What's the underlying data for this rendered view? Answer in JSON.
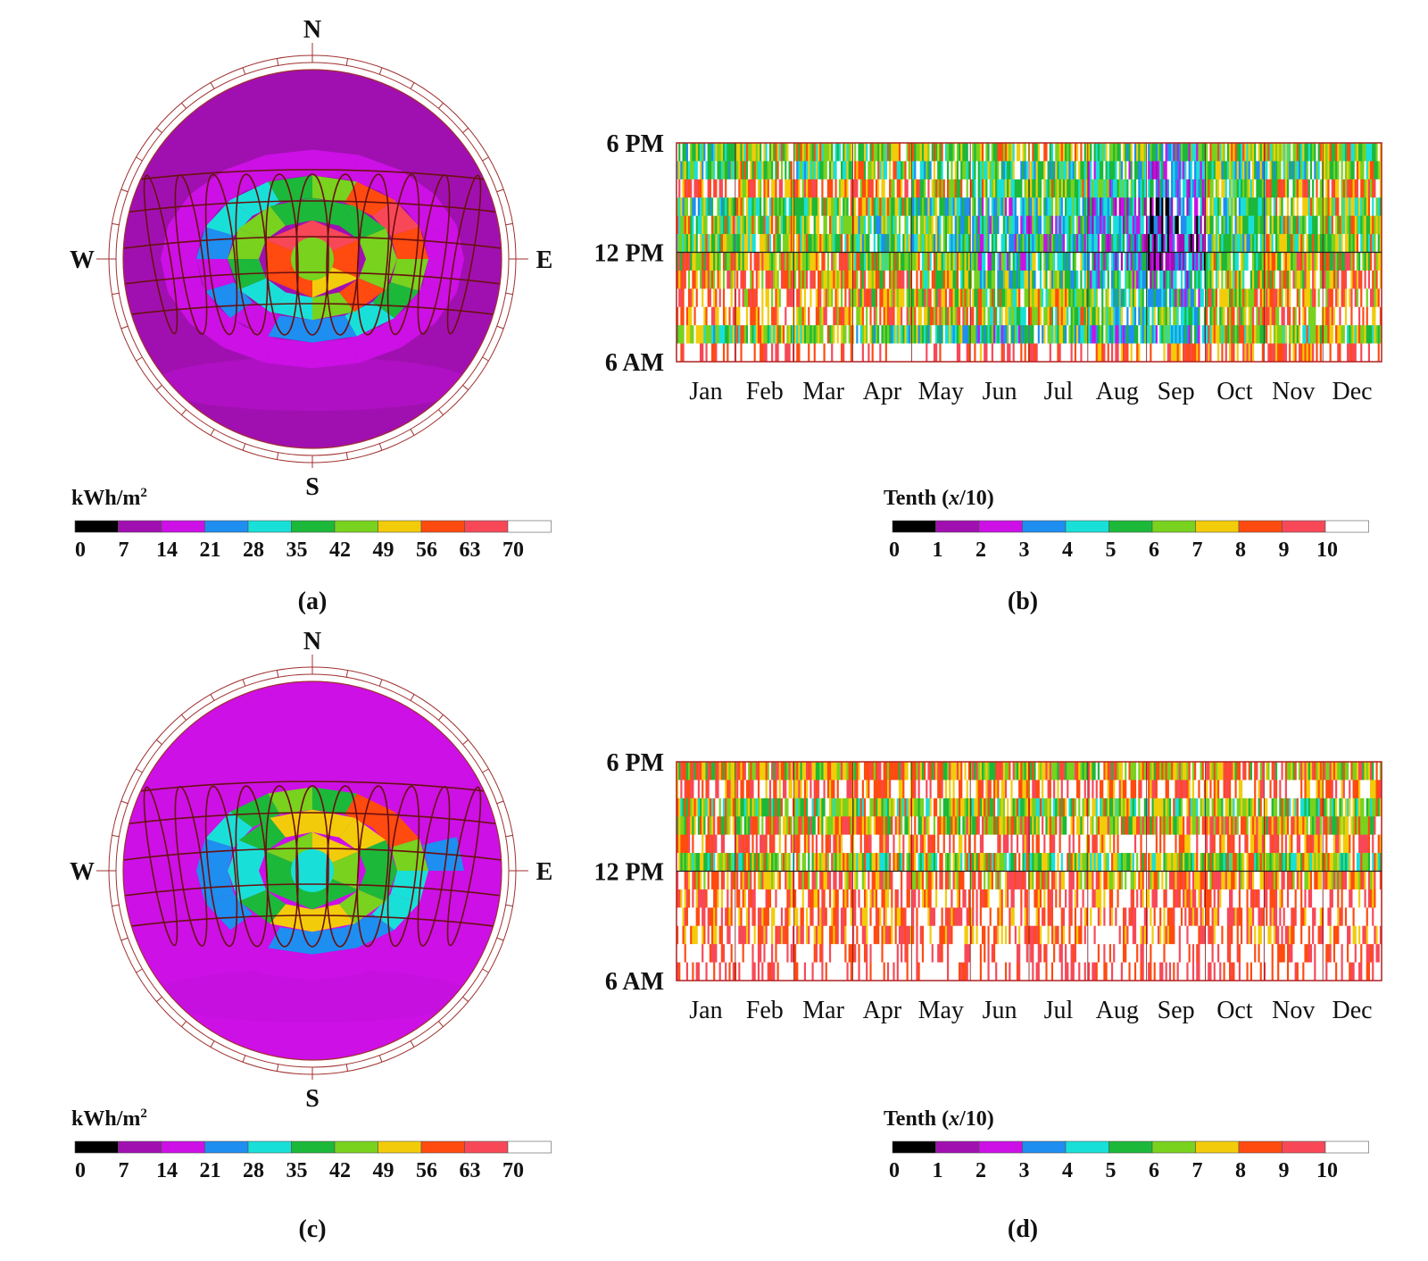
{
  "panels": [
    {
      "id": "a",
      "label": "(a)"
    },
    {
      "id": "b",
      "label": "(b)"
    },
    {
      "id": "c",
      "label": "(c)"
    },
    {
      "id": "d",
      "label": "(d)"
    }
  ],
  "compass": {
    "n": "N",
    "s": "S",
    "e": "E",
    "w": "W"
  },
  "radiation_legend": {
    "title": "kWh/m",
    "title_sup": "2",
    "ticks": [
      "0",
      "7",
      "14",
      "21",
      "28",
      "35",
      "42",
      "49",
      "56",
      "63",
      "70"
    ],
    "colors": [
      "#000000",
      "#a010b0",
      "#cc10e6",
      "#1e8ef0",
      "#18e0d8",
      "#1cb83a",
      "#78d21e",
      "#f2cc0a",
      "#ff4a10",
      "#f84858",
      "#ffffff"
    ]
  },
  "sunlight_legend": {
    "title_prefix": "Tenth (",
    "title_var": "x",
    "title_suffix": "/10)",
    "ticks": [
      "0",
      "1",
      "2",
      "3",
      "4",
      "5",
      "6",
      "7",
      "8",
      "9",
      "10"
    ],
    "colors": [
      "#000000",
      "#a010b0",
      "#cc10e6",
      "#1e8ef0",
      "#18e0d8",
      "#1cb83a",
      "#78d21e",
      "#f2cc0a",
      "#ff4a10",
      "#f84858",
      "#ffffff"
    ]
  },
  "chart_data": [
    {
      "id": "a",
      "type": "heatmap",
      "subtype": "polar-sky-radiation-dome",
      "colorbar_label": "kWh/m2",
      "range": [
        0,
        70
      ],
      "rings": [
        {
          "zone": "center",
          "values": [
            45
          ]
        },
        {
          "zone": "ring1",
          "values": [
            66,
            60,
            52,
            56,
            62,
            64
          ]
        },
        {
          "zone": "ring2",
          "values": [
            38,
            40,
            42,
            48,
            58,
            44,
            34,
            30,
            36,
            44,
            46,
            40
          ]
        },
        {
          "zone": "ring3",
          "values": [
            42,
            60,
            66,
            56,
            44,
            36,
            28,
            26,
            24,
            20,
            22,
            18,
            22,
            28,
            34,
            40
          ]
        },
        {
          "zone": "ring4",
          "values": [
            16,
            14,
            16,
            20,
            18,
            16,
            14,
            14,
            14,
            16,
            14,
            16,
            18,
            16,
            14,
            14,
            16,
            18,
            20,
            18
          ]
        },
        {
          "zone": "outer",
          "values": [
            13
          ]
        }
      ]
    },
    {
      "id": "b",
      "type": "heatmap",
      "subtype": "annual-hourly-sunlight",
      "y_ticks": [
        "6 PM",
        "12 PM",
        "6 AM"
      ],
      "x_ticks": [
        "Jan",
        "Feb",
        "Mar",
        "Apr",
        "May",
        "Jun",
        "Jul",
        "Aug",
        "Sep",
        "Oct",
        "Nov",
        "Dec"
      ],
      "colorbar_label": "Tenth (x/10)",
      "range": [
        0,
        10
      ],
      "hour_rows": [
        "18",
        "17",
        "16",
        "15",
        "14",
        "13",
        "12",
        "11",
        "10",
        "9",
        "8",
        "7"
      ],
      "typical_tenths": [
        [
          5,
          6,
          6,
          6,
          6,
          6,
          6,
          5,
          4,
          6,
          6,
          6
        ],
        [
          5,
          6,
          5,
          6,
          5,
          5,
          5,
          4,
          3,
          5,
          5,
          6
        ],
        [
          9,
          8,
          8,
          8,
          7,
          6,
          6,
          4,
          3,
          6,
          7,
          8
        ],
        [
          5,
          6,
          6,
          6,
          5,
          4,
          5,
          3,
          2,
          5,
          6,
          6
        ],
        [
          6,
          6,
          6,
          5,
          5,
          4,
          4,
          3,
          2,
          5,
          6,
          6
        ],
        [
          6,
          6,
          6,
          5,
          5,
          4,
          4,
          3,
          2,
          5,
          6,
          6
        ],
        [
          7,
          7,
          7,
          6,
          6,
          4,
          5,
          3,
          2,
          6,
          7,
          7
        ],
        [
          8,
          8,
          8,
          7,
          6,
          5,
          5,
          4,
          3,
          6,
          7,
          8
        ],
        [
          9,
          8,
          8,
          7,
          7,
          6,
          6,
          5,
          4,
          7,
          8,
          8
        ],
        [
          9,
          9,
          8,
          8,
          7,
          6,
          6,
          5,
          5,
          7,
          8,
          9
        ],
        [
          5,
          6,
          6,
          5,
          5,
          4,
          5,
          4,
          4,
          6,
          6,
          6
        ],
        [
          10,
          10,
          10,
          10,
          10,
          9,
          10,
          9,
          9,
          9,
          9,
          10
        ]
      ]
    },
    {
      "id": "c",
      "type": "heatmap",
      "subtype": "polar-sky-radiation-dome",
      "colorbar_label": "kWh/m2",
      "range": [
        0,
        70
      ],
      "rings": [
        {
          "zone": "center",
          "values": [
            34
          ]
        },
        {
          "zone": "ring1",
          "values": [
            52,
            46,
            40,
            38,
            40,
            46
          ]
        },
        {
          "zone": "ring2",
          "values": [
            54,
            52,
            40,
            36,
            42,
            54,
            50,
            36,
            30,
            34,
            40,
            52
          ]
        },
        {
          "zone": "ring3",
          "values": [
            38,
            58,
            62,
            42,
            32,
            28,
            24,
            22,
            22,
            20,
            22,
            24,
            26,
            32,
            38,
            42
          ]
        },
        {
          "zone": "ring4",
          "values": [
            18,
            16,
            18,
            20,
            22,
            20,
            18,
            16,
            16,
            18,
            16,
            16,
            18,
            20,
            20,
            18,
            16,
            16,
            18,
            18
          ]
        },
        {
          "zone": "outer",
          "values": [
            15
          ]
        }
      ]
    },
    {
      "id": "d",
      "type": "heatmap",
      "subtype": "annual-hourly-sunlight",
      "y_ticks": [
        "6 PM",
        "12 PM",
        "6 AM"
      ],
      "x_ticks": [
        "Jan",
        "Feb",
        "Mar",
        "Apr",
        "May",
        "Jun",
        "Jul",
        "Aug",
        "Sep",
        "Oct",
        "Nov",
        "Dec"
      ],
      "colorbar_label": "Tenth (x/10)",
      "range": [
        0,
        10
      ],
      "hour_rows": [
        "18",
        "17",
        "16",
        "15",
        "14",
        "13",
        "12",
        "11",
        "10",
        "9",
        "8",
        "7"
      ],
      "typical_tenths": [
        [
          7,
          7,
          7,
          7,
          7,
          7,
          7,
          7,
          7,
          7,
          7,
          7
        ],
        [
          9,
          9,
          9,
          9,
          9,
          9,
          9,
          9,
          9,
          9,
          9,
          9
        ],
        [
          6,
          6,
          6,
          6,
          6,
          6,
          6,
          6,
          6,
          6,
          6,
          6
        ],
        [
          7,
          7,
          7,
          7,
          7,
          7,
          7,
          7,
          7,
          7,
          7,
          7
        ],
        [
          9,
          9,
          9,
          9,
          9,
          9,
          9,
          9,
          9,
          9,
          9,
          9
        ],
        [
          6,
          6,
          7,
          6,
          6,
          6,
          6,
          6,
          6,
          6,
          6,
          6
        ],
        [
          8,
          8,
          8,
          8,
          8,
          8,
          8,
          8,
          8,
          8,
          8,
          8
        ],
        [
          9,
          9,
          9,
          9,
          9,
          9,
          9,
          9,
          9,
          9,
          9,
          9
        ],
        [
          9,
          9,
          9,
          9,
          9,
          9,
          9,
          9,
          9,
          9,
          9,
          9
        ],
        [
          9,
          9,
          9,
          9,
          9,
          9,
          9,
          9,
          9,
          9,
          9,
          9
        ],
        [
          10,
          10,
          10,
          10,
          10,
          10,
          10,
          10,
          10,
          10,
          10,
          10
        ],
        [
          10,
          10,
          10,
          10,
          10,
          10,
          10,
          10,
          10,
          10,
          10,
          10
        ]
      ]
    }
  ]
}
